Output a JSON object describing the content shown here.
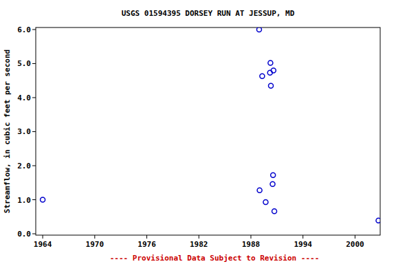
{
  "chart_data": {
    "type": "scatter",
    "title": "USGS 01594395 DORSEY RUN AT JESSUP, MD",
    "y_label": "Streamflow, in cubic feet per second",
    "footer": "---- Provisional Data Subject to Revision ----",
    "x": [
      1964.0,
      1988.95,
      1989.0,
      1989.3,
      1989.7,
      1990.25,
      1990.2,
      1990.3,
      1990.6,
      1990.55,
      1990.5,
      1990.7,
      2002.7
    ],
    "values": [
      1.0,
      6.0,
      1.28,
      4.63,
      0.93,
      5.02,
      4.73,
      4.35,
      4.8,
      1.72,
      1.46,
      0.66,
      0.39
    ],
    "color": "#0000cc",
    "marker": "circle",
    "xlim": [
      1963.2,
      2002.9
    ],
    "xticks": [
      1964,
      1970,
      1976,
      1982,
      1988,
      1994,
      2000
    ],
    "ylim": [
      -0.04,
      6.06
    ],
    "yticks": [
      {
        "value": 0,
        "label": "0.0"
      },
      {
        "value": 1,
        "label": "1.0"
      },
      {
        "value": 2,
        "label": "2.0"
      },
      {
        "value": 3,
        "label": "3.0"
      },
      {
        "value": 4,
        "label": "4.0"
      },
      {
        "value": 5,
        "label": "5.0"
      },
      {
        "value": 6,
        "label": "6.0"
      }
    ],
    "grid": false
  }
}
